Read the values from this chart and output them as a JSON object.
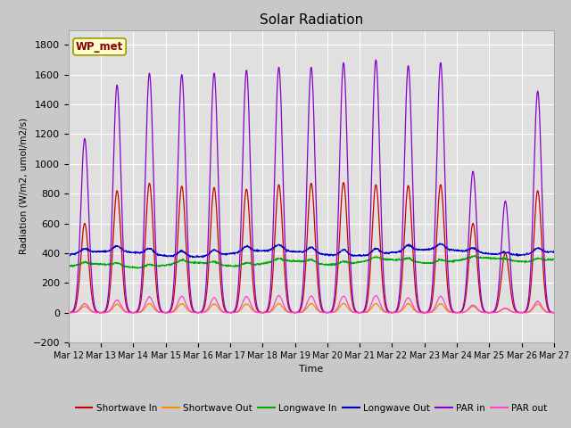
{
  "title": "Solar Radiation",
  "xlabel": "Time",
  "ylabel": "Radiation (W/m2, umol/m2/s)",
  "ylim": [
    -200,
    1900
  ],
  "yticks": [
    -200,
    0,
    200,
    400,
    600,
    800,
    1000,
    1200,
    1400,
    1600,
    1800
  ],
  "fig_bg_color": "#c8c8c8",
  "plot_bg_color": "#e0e0e0",
  "label_box": "WP_met",
  "series_colors": {
    "Shortwave In": "#cc0000",
    "Shortwave Out": "#ff8800",
    "Longwave In": "#00aa00",
    "Longwave Out": "#0000cc",
    "PAR in": "#8800cc",
    "PAR out": "#ff44cc"
  },
  "n_days": 15,
  "start_day": 12
}
